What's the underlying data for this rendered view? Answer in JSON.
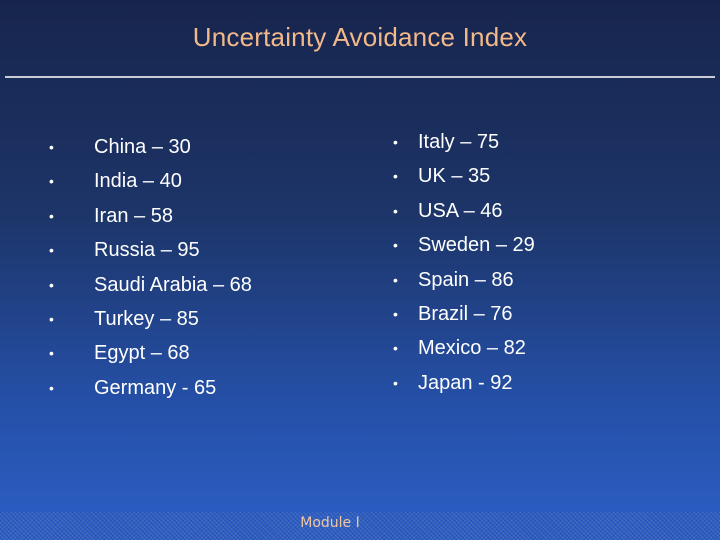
{
  "slide": {
    "title": "Uncertainty Avoidance Index",
    "footer": "Module I",
    "bullet": "•",
    "left_items": [
      "China – 30",
      "India – 40",
      "Iran – 58",
      "Russia – 95",
      "Saudi Arabia – 68",
      "Turkey – 85",
      "Egypt – 68",
      "Germany - 65"
    ],
    "right_items": [
      "Italy – 75",
      "UK – 35",
      "USA – 46",
      "Sweden – 29",
      "Spain – 86",
      "Brazil – 76",
      "Mexico – 82",
      "Japan - 92"
    ]
  },
  "colors": {
    "title": "#f2b98a",
    "text": "#ffffff",
    "background_top": "#17254d",
    "background_bottom": "#2b5fc6"
  }
}
